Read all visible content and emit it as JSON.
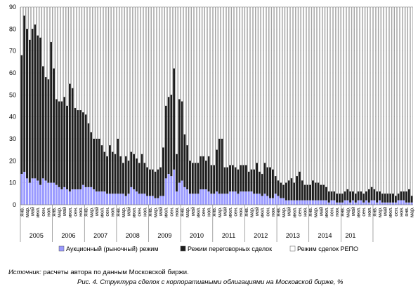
{
  "chart_data": {
    "type": "bar",
    "stacked": true,
    "ylim": [
      0,
      90
    ],
    "yticks": [
      0,
      10,
      20,
      30,
      40,
      50,
      60,
      70,
      80,
      90
    ],
    "month_labels": [
      "янв.",
      "мар.",
      "май",
      "июл.",
      "сен.",
      "ноя."
    ],
    "years": [
      "2005",
      "2006",
      "2007",
      "2008",
      "2009",
      "2010",
      "2011",
      "2012",
      "2013",
      "2014",
      "201"
    ],
    "start_year": 2005,
    "series": [
      {
        "name": "Аукционный (рыночный) режим",
        "color": "#9999ff",
        "values": [
          14,
          15,
          12,
          10,
          12,
          12,
          11,
          9,
          12,
          11,
          10,
          10,
          10,
          9,
          8,
          7,
          8,
          7,
          6,
          7,
          7,
          7,
          7,
          9,
          8,
          8,
          8,
          7,
          6,
          6,
          6,
          6,
          5,
          5,
          5,
          5,
          5,
          5,
          5,
          4,
          5,
          8,
          7,
          6,
          5,
          5,
          5,
          4,
          4,
          4,
          3,
          3,
          4,
          4,
          12,
          14,
          13,
          16,
          6,
          10,
          11,
          8,
          7,
          5,
          5,
          5,
          5,
          7,
          7,
          7,
          6,
          5,
          5,
          6,
          5,
          5,
          5,
          5,
          6,
          6,
          6,
          5,
          6,
          6,
          6,
          6,
          6,
          5,
          5,
          5,
          4,
          5,
          4,
          3,
          3,
          5,
          4,
          3,
          3,
          2,
          2,
          2,
          2,
          2,
          2,
          2,
          2,
          2,
          2,
          2,
          2,
          2,
          2,
          2,
          2,
          1,
          2,
          2,
          1,
          1,
          1,
          2,
          2,
          1,
          2,
          1,
          2,
          2,
          1,
          2,
          1,
          2,
          2,
          1,
          2,
          1,
          1,
          1,
          1,
          1,
          1,
          2,
          2,
          2,
          1,
          1,
          1
        ]
      },
      {
        "name": "Режим переговорных сделок",
        "color": "#1e1e1e",
        "values": [
          54,
          71,
          68,
          65,
          68,
          70,
          66,
          67,
          51,
          47,
          47,
          64,
          52,
          39,
          39,
          40,
          41,
          38,
          49,
          46,
          37,
          36,
          36,
          33,
          33,
          29,
          25,
          23,
          24,
          24,
          21,
          18,
          17,
          22,
          19,
          18,
          25,
          17,
          14,
          18,
          15,
          16,
          16,
          15,
          14,
          18,
          14,
          13,
          12,
          12,
          12,
          13,
          13,
          22,
          33,
          35,
          37,
          46,
          17,
          38,
          36,
          24,
          20,
          15,
          14,
          14,
          14,
          15,
          15,
          13,
          16,
          13,
          13,
          19,
          25,
          25,
          12,
          12,
          12,
          12,
          11,
          11,
          12,
          12,
          12,
          9,
          10,
          11,
          14,
          10,
          10,
          14,
          13,
          14,
          13,
          8,
          7,
          7,
          6,
          8,
          9,
          10,
          8,
          11,
          13,
          9,
          7,
          7,
          7,
          9,
          8,
          8,
          7,
          7,
          6,
          5,
          4,
          4,
          4,
          4,
          4,
          4,
          5,
          5,
          4,
          4,
          4,
          4,
          4,
          4,
          6,
          6,
          5,
          5,
          4,
          4,
          4,
          4,
          4,
          4,
          3,
          3,
          4,
          4,
          5,
          6,
          3
        ]
      },
      {
        "name": "Режим сделок РЕПО",
        "color": "#ffffff",
        "values": []
      }
    ]
  },
  "source": {
    "label": "Источник:",
    "text": " расчеты автора по данным Московской биржи."
  },
  "caption": "Рис. 4. Структура сделок с корпоративными облигациями на Московской бирже, %"
}
